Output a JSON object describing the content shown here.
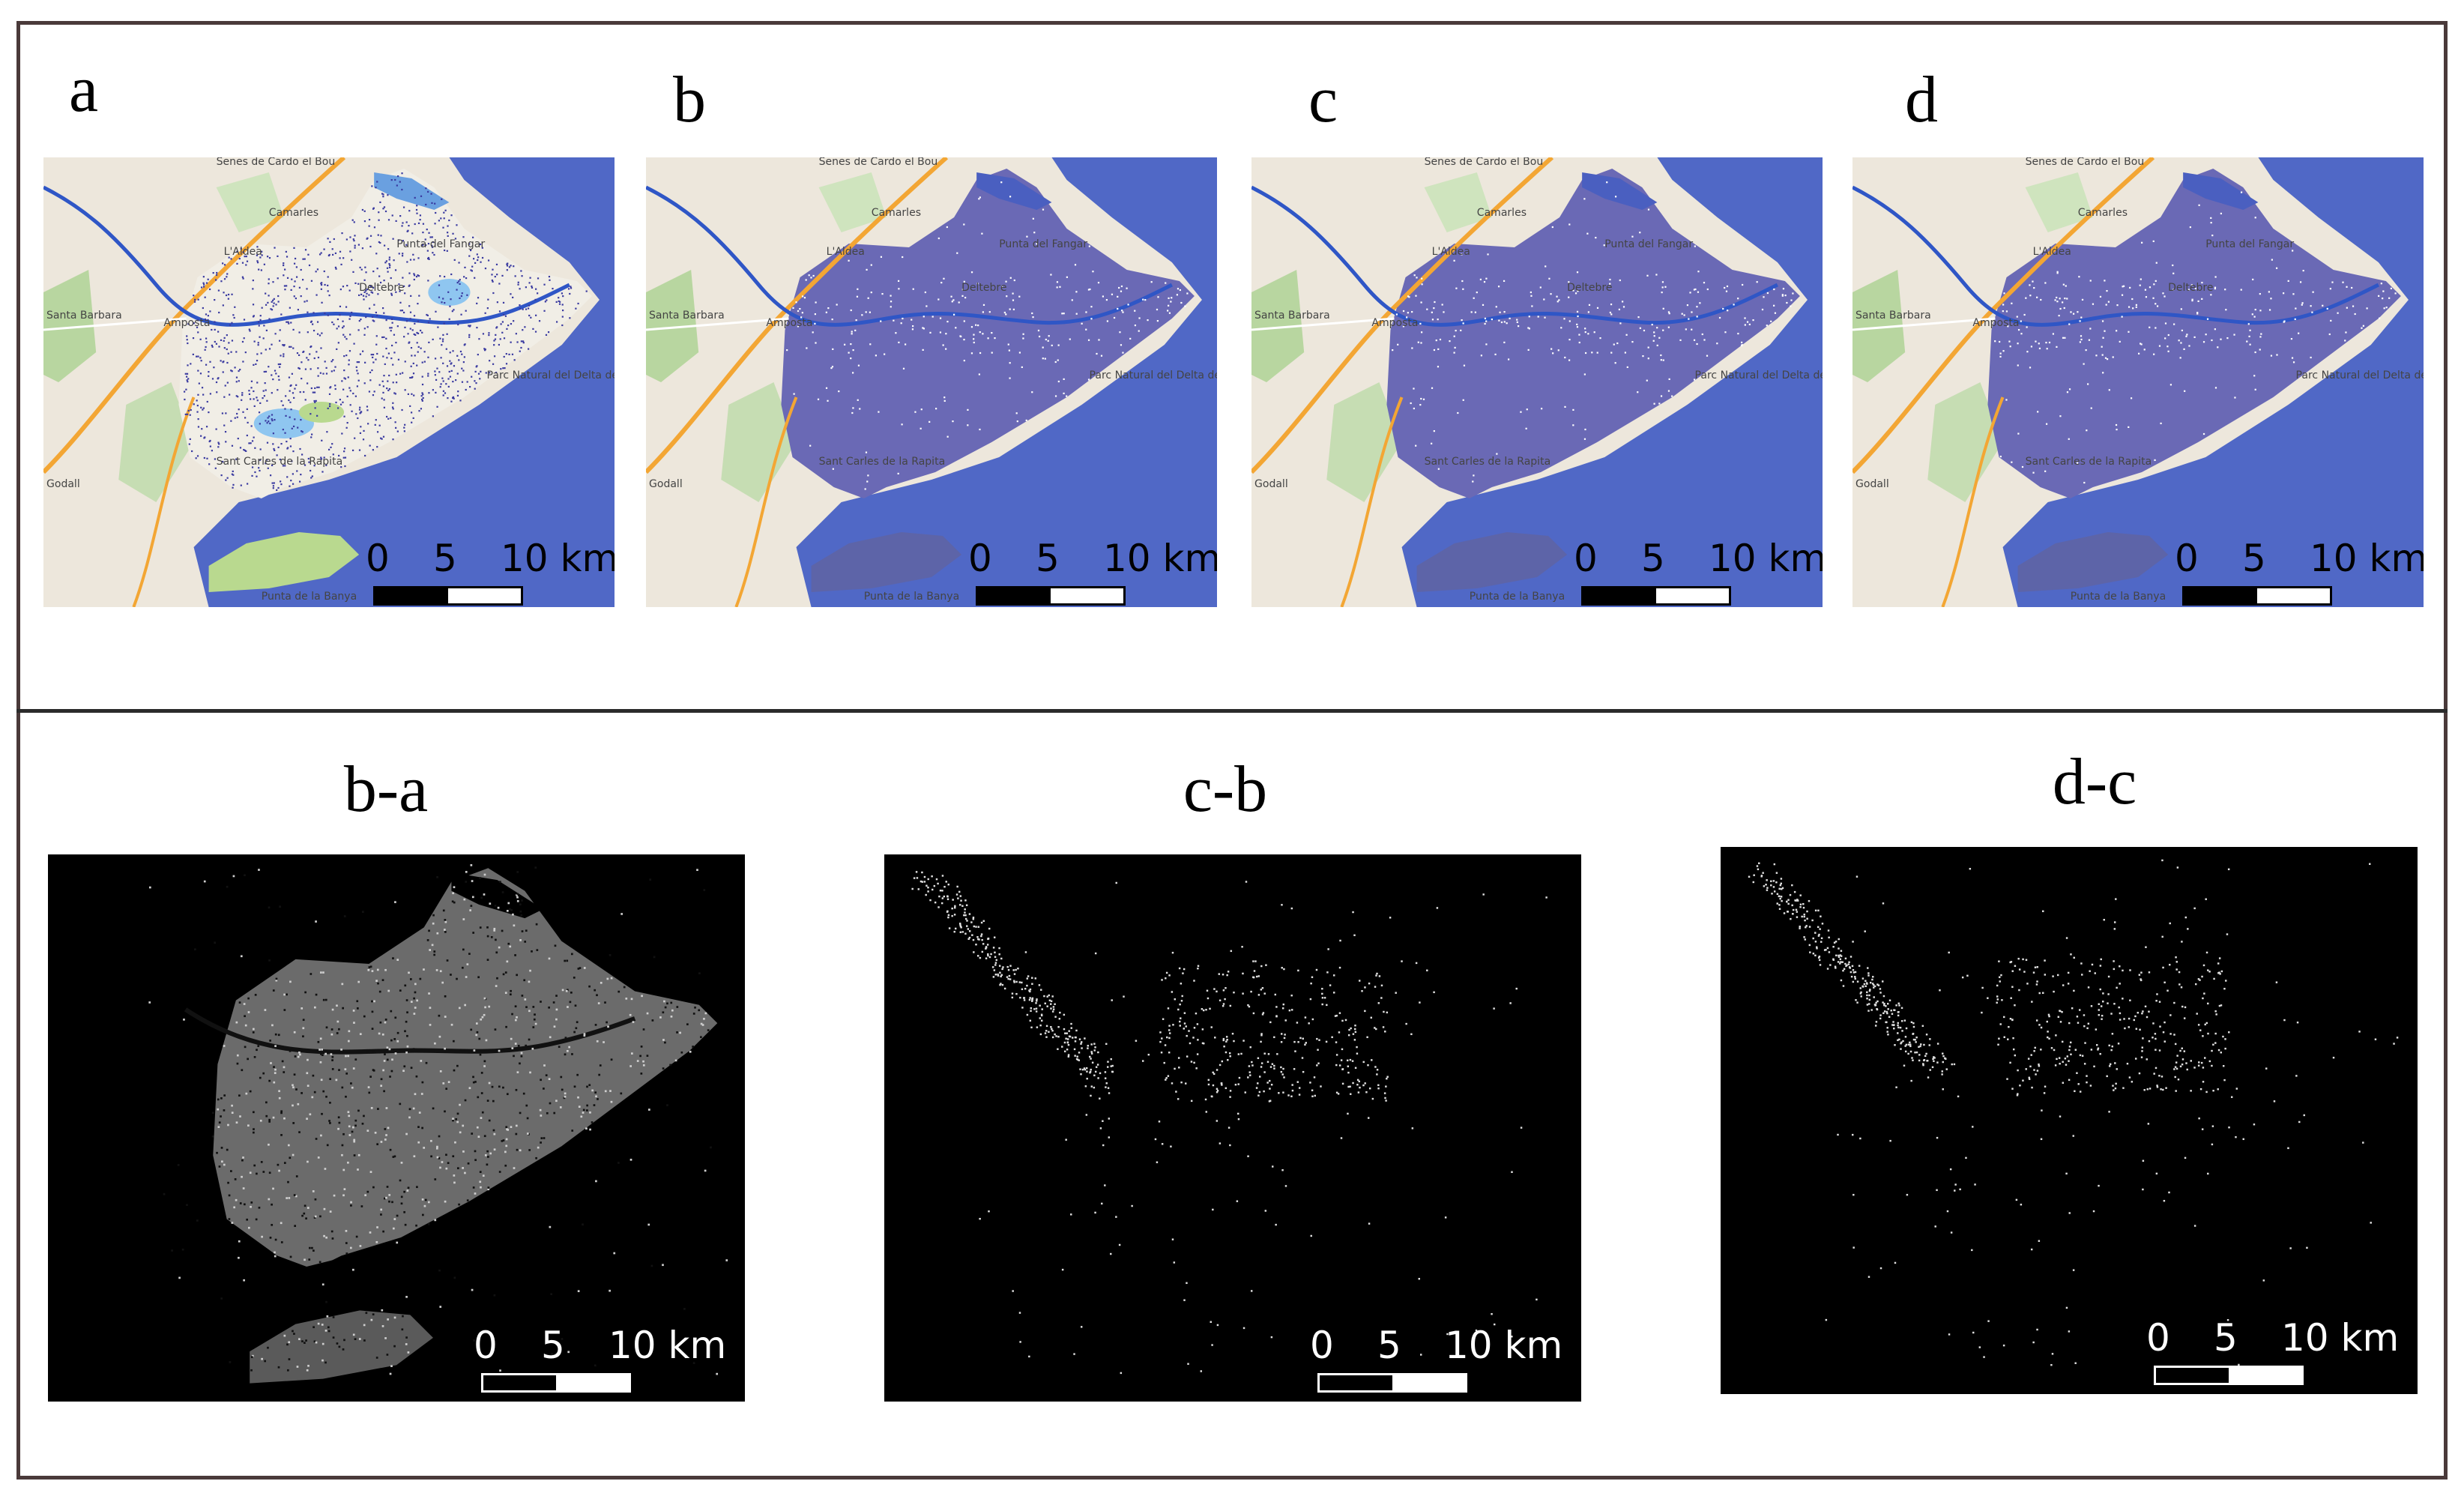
{
  "figure": {
    "top_panels": [
      {
        "label": "a",
        "mode": "original"
      },
      {
        "label": "b",
        "mode": "flood"
      },
      {
        "label": "c",
        "mode": "flood"
      },
      {
        "label": "d",
        "mode": "flood"
      }
    ],
    "bottom_panels": [
      {
        "label": "b-a",
        "density": "high"
      },
      {
        "label": "c-b",
        "density": "low"
      },
      {
        "label": "d-c",
        "density": "low"
      }
    ],
    "scale": {
      "t0": "0",
      "t5": "5",
      "t10": "10 km"
    },
    "map_labels": {
      "seves": "Senes de Cardo el Bou",
      "camarles": "Camarles",
      "aldea": "L'Aldea",
      "deltebre": "Deltebre",
      "amposta": "Amposta",
      "santa_barbara": "Santa Barbara",
      "sant_carles": "Sant Carles de la Rapita",
      "punta_fangar": "Punta del Fangar",
      "parc": "Parc Natural del Delta de l'Ebre",
      "punta_banya": "Punta de la Banya",
      "godall": "Godall"
    },
    "colors": {
      "sea": "#5068c6",
      "land": "#ede7dc",
      "flood": "#6a69b5",
      "road": "#f3a634",
      "river": "#2f56c6",
      "diff_background": "#000000",
      "frame": "#4a3a3a"
    }
  }
}
